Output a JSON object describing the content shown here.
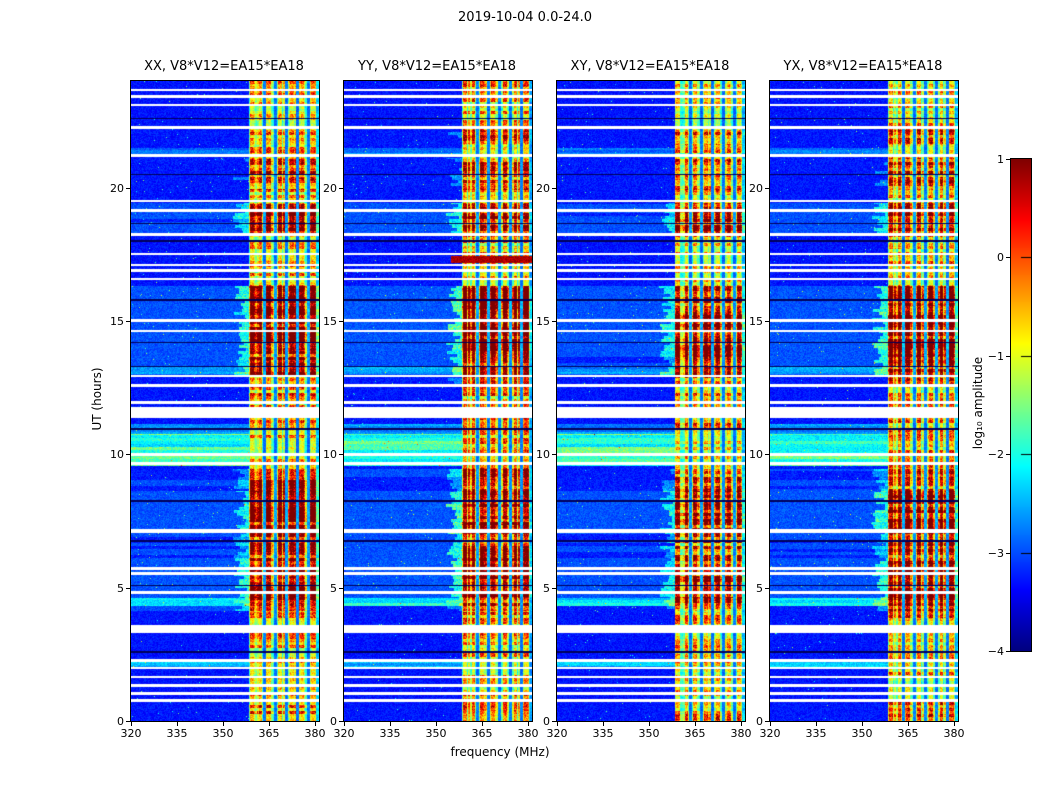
{
  "figure": {
    "suptitle": "2019-10-04 0.0-24.0"
  },
  "chart_data": {
    "type": "heatmap",
    "title": "2019-10-04 0.0-24.0",
    "description": "Four dynamic-spectrum (frequency vs UT time) panels of correlation amplitude for baseline V8*V12=EA15*EA18, polarizations XX, YY, XY, YX, with jet colormap colorbar.",
    "panels": [
      {
        "id": "xx",
        "title": "XX, V8*V12=EA15*EA18"
      },
      {
        "id": "yy",
        "title": "YY, V8*V12=EA15*EA18"
      },
      {
        "id": "xy",
        "title": "XY, V8*V12=EA15*EA18"
      },
      {
        "id": "yx",
        "title": "YX, V8*V12=EA15*EA18"
      }
    ],
    "xlabel": "frequency (MHz)",
    "ylabel": "UT (hours)",
    "x_range_mhz": [
      320,
      381.3
    ],
    "y_range_hours": [
      0,
      24
    ],
    "xticks": [
      320,
      335,
      350,
      365,
      380
    ],
    "xtick_labels": [
      "320",
      "335",
      "350",
      "365",
      "380"
    ],
    "yticks": [
      0,
      5,
      10,
      15,
      20
    ],
    "ytick_labels": [
      "0",
      "5",
      "10",
      "15",
      "20"
    ],
    "colorbar": {
      "label": "log₁₀ amplitude",
      "vmin": -4,
      "vmax": 1,
      "ticks": [
        1,
        0,
        -1,
        -2,
        -3,
        -4
      ],
      "tick_labels": [
        "1",
        "0",
        "−1",
        "−2",
        "−3",
        "−4"
      ],
      "colormap": "jet"
    },
    "features": {
      "background_log10_amplitude": -3.5,
      "rfi_band_mhz": [
        358.5,
        381.3
      ],
      "rfi_extension_mhz": [
        352.5,
        358.5
      ],
      "bright_channels_mhz": [
        359.5,
        362.2,
        365.0,
        368.6,
        372.5,
        376.0,
        379.3
      ],
      "dark_channels_mhz": [
        363.5,
        367.0,
        370.8,
        374.4,
        377.8
      ],
      "panel_intensity_scale": [
        1.0,
        1.1,
        0.93,
        1.03
      ],
      "yy_red_streak_ut": [
        17.18,
        17.42
      ],
      "activity_ut": [
        [
          0.0,
          0.72,
          0.52
        ],
        [
          0.72,
          1.0,
          0.4
        ],
        [
          1.0,
          1.95,
          0.34
        ],
        [
          1.95,
          3.3,
          0.4
        ],
        [
          3.3,
          3.62,
          0.36
        ],
        [
          3.62,
          4.12,
          0.46
        ],
        [
          4.12,
          4.62,
          0.72
        ],
        [
          4.62,
          6.12,
          0.95
        ],
        [
          6.12,
          7.0,
          0.8
        ],
        [
          7.0,
          8.62,
          0.97
        ],
        [
          8.62,
          9.45,
          0.72
        ],
        [
          9.45,
          10.7,
          0.42
        ],
        [
          10.7,
          12.5,
          0.46
        ],
        [
          12.5,
          12.92,
          0.56
        ],
        [
          12.92,
          13.9,
          0.88
        ],
        [
          13.9,
          16.3,
          1.0
        ],
        [
          16.3,
          18.15,
          0.38
        ],
        [
          18.15,
          18.3,
          0.5
        ],
        [
          18.3,
          19.42,
          0.86
        ],
        [
          19.42,
          19.9,
          0.42
        ],
        [
          19.9,
          21.1,
          0.62
        ],
        [
          21.1,
          21.6,
          0.42
        ],
        [
          21.6,
          22.15,
          0.56
        ],
        [
          22.15,
          24.01,
          0.38
        ]
      ],
      "broadband_ut": [
        [
          1.95,
          2.28,
          0.5
        ],
        [
          4.3,
          4.62,
          0.55
        ],
        [
          9.55,
          10.75,
          0.85
        ],
        [
          10.75,
          11.15,
          0.35
        ],
        [
          13.0,
          13.3,
          0.25
        ],
        [
          21.28,
          21.5,
          0.3
        ]
      ],
      "data_gap_rows_ut": [
        [
          0.72,
          0.1
        ],
        [
          0.98,
          0.1
        ],
        [
          1.28,
          0.12
        ],
        [
          1.62,
          0.08
        ],
        [
          1.95,
          0.08
        ],
        [
          2.22,
          0.1
        ],
        [
          3.3,
          0.3
        ],
        [
          4.78,
          0.1
        ],
        [
          5.48,
          0.1
        ],
        [
          5.68,
          0.1
        ],
        [
          7.05,
          0.15
        ],
        [
          9.6,
          0.1
        ],
        [
          9.92,
          0.12
        ],
        [
          11.35,
          0.42
        ],
        [
          11.88,
          0.12
        ],
        [
          12.52,
          0.1
        ],
        [
          12.9,
          0.08
        ],
        [
          14.58,
          0.1
        ],
        [
          14.98,
          0.08
        ],
        [
          16.52,
          0.1
        ],
        [
          16.85,
          0.1
        ],
        [
          17.08,
          0.07
        ],
        [
          17.48,
          0.08
        ],
        [
          18.18,
          0.12
        ],
        [
          19.1,
          0.1
        ],
        [
          19.45,
          0.1
        ],
        [
          21.15,
          0.12
        ],
        [
          22.2,
          0.1
        ],
        [
          23.05,
          0.08
        ],
        [
          23.38,
          0.1
        ],
        [
          23.62,
          0.08
        ]
      ],
      "flagged_dark_rows_ut": [
        [
          2.56,
          0.07
        ],
        [
          5.06,
          0.05
        ],
        [
          6.7,
          0.07
        ],
        [
          8.2,
          0.07
        ],
        [
          10.92,
          0.05
        ],
        [
          13.26,
          0.07
        ],
        [
          14.16,
          0.07
        ],
        [
          15.76,
          0.07
        ],
        [
          17.96,
          0.07
        ],
        [
          18.62,
          0.05
        ],
        [
          20.46,
          0.07
        ],
        [
          22.56,
          0.07
        ]
      ]
    }
  }
}
